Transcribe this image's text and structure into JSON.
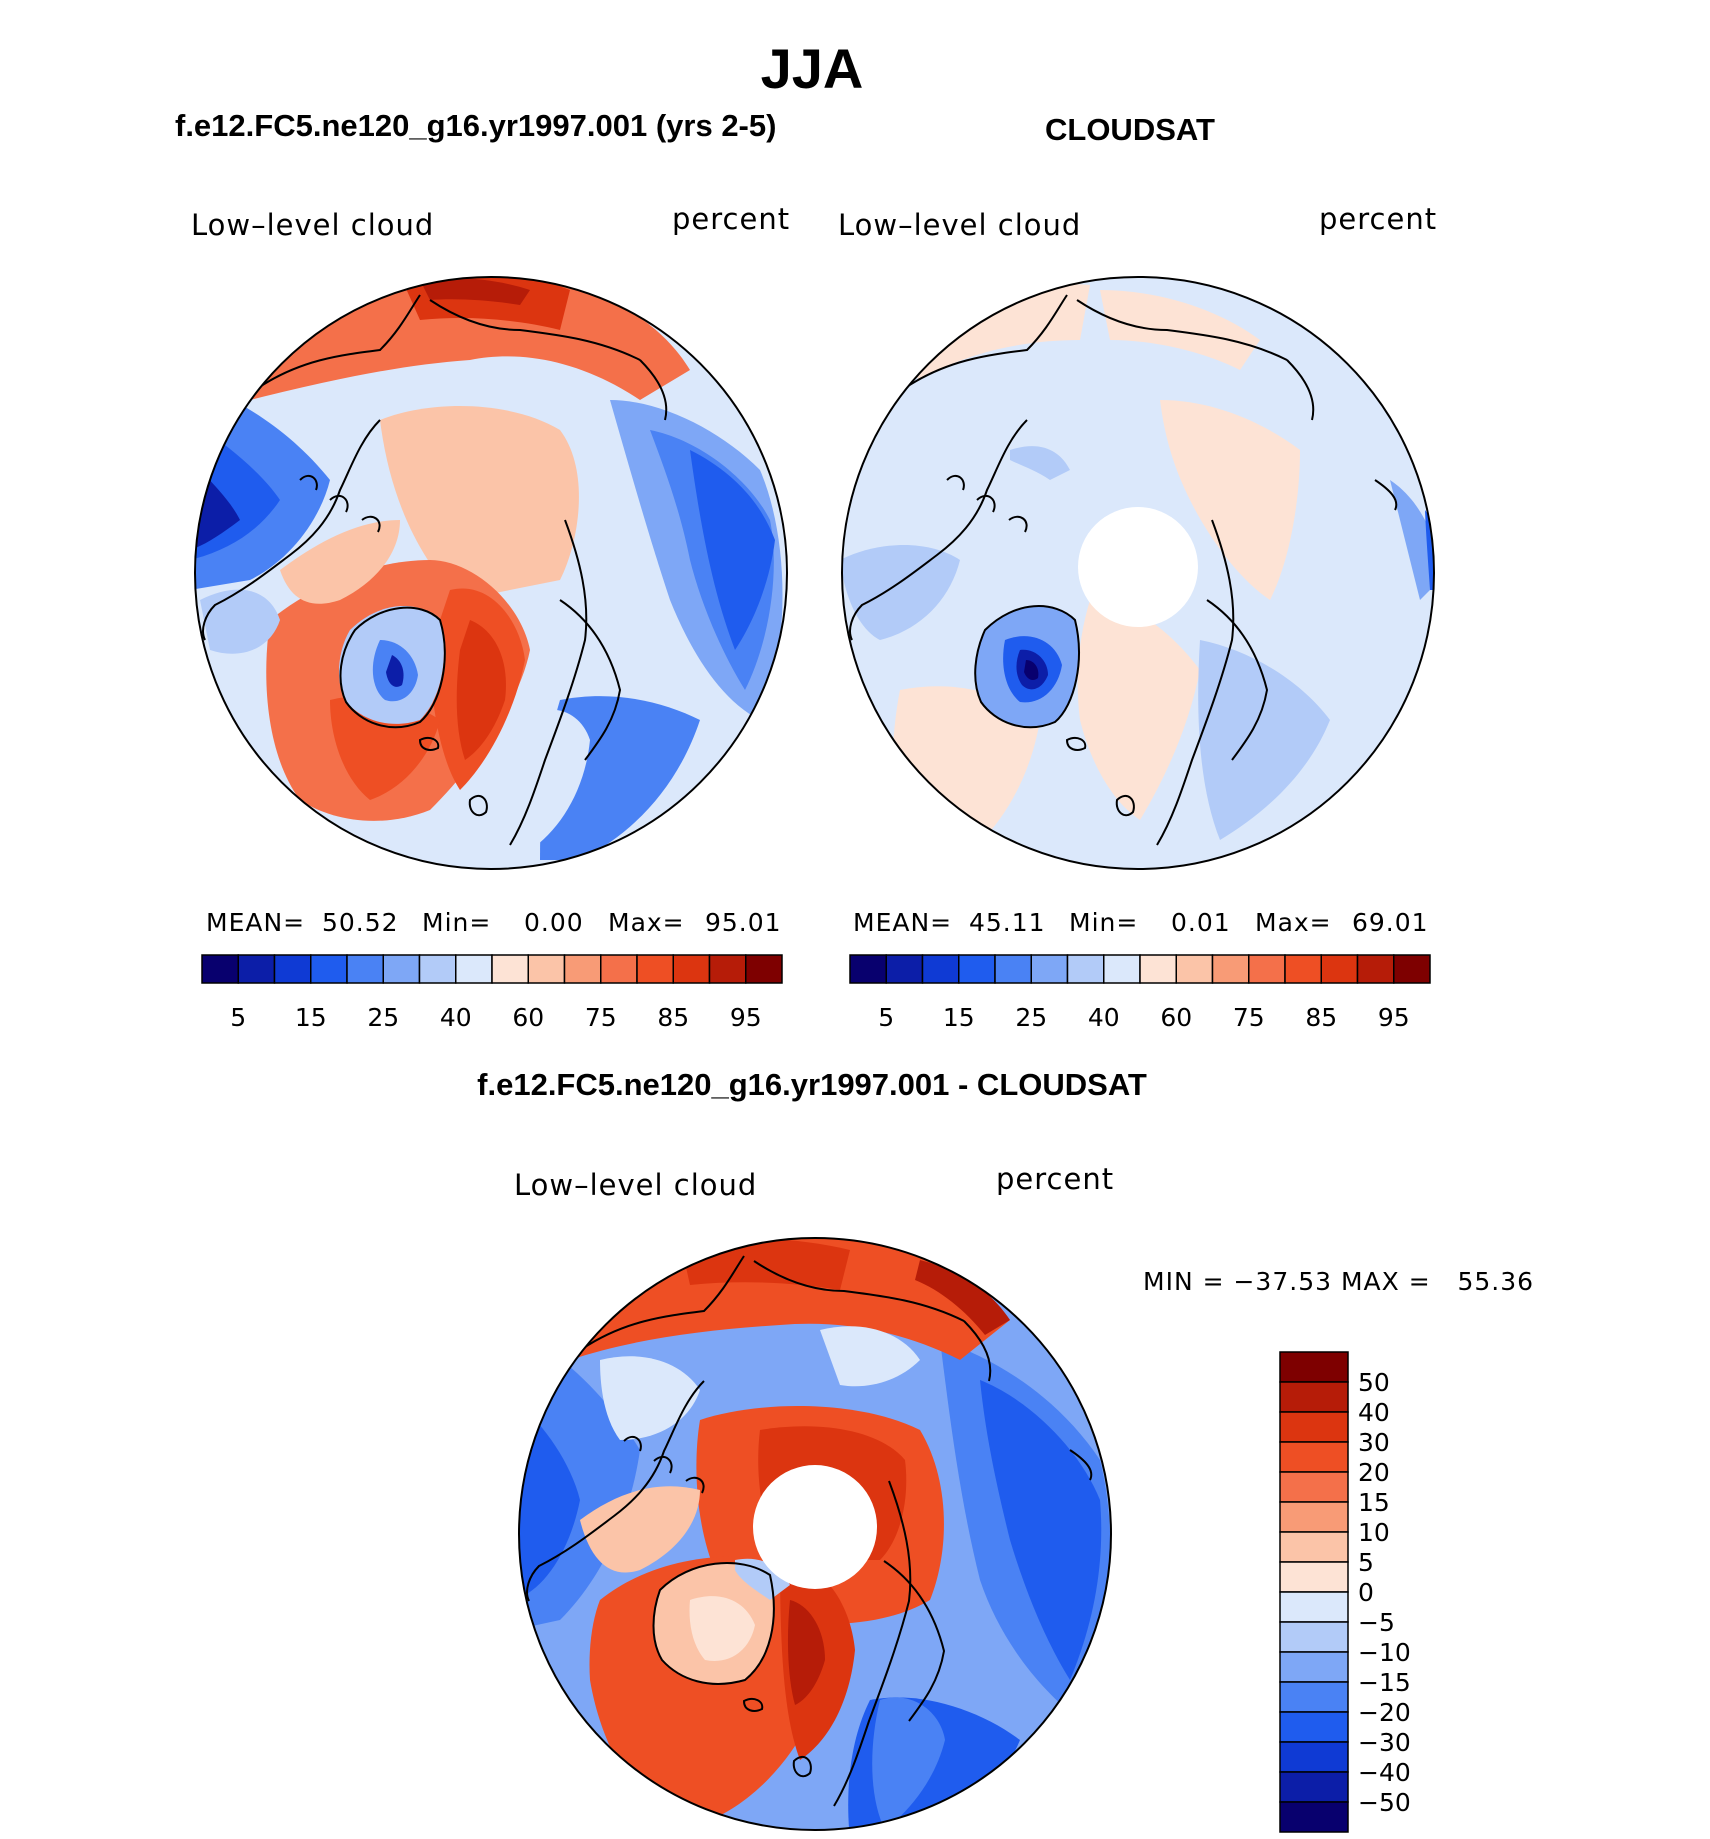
{
  "title": "JJA",
  "panels": [
    {
      "title": "f.e12.FC5.ne120_g16.yr1997.001 (yrs 2-5)",
      "variable_label": "Low–level cloud",
      "units_label": "percent",
      "stats": {
        "mean_label": "MEAN=",
        "mean": "50.52",
        "min_label": "Min=",
        "min": "0.00",
        "max_label": "Max=",
        "max": "95.01"
      }
    },
    {
      "title": "CLOUDSAT",
      "variable_label": "Low–level cloud",
      "units_label": "percent",
      "stats": {
        "mean_label": "MEAN=",
        "mean": "45.11",
        "min_label": "Min=",
        "min": "0.01",
        "max_label": "Max=",
        "max": "69.01"
      }
    },
    {
      "title": "f.e12.FC5.ne120_g16.yr1997.001 - CLOUDSAT",
      "variable_label": "Low–level cloud",
      "units_label": "percent",
      "stats_text": "MIN = −37.53 MAX =   55.36"
    }
  ],
  "colorbar_abs": {
    "colors": [
      "#08006e",
      "#0c1ea8",
      "#0f3ad4",
      "#1f5cee",
      "#4a82f4",
      "#7ea7f6",
      "#b2cbf8",
      "#dbe8fb",
      "#fde3d5",
      "#fbc4a8",
      "#f89b76",
      "#f4704a",
      "#ee4f24",
      "#dc3510",
      "#b61c08",
      "#7e0000"
    ],
    "tick_labels": [
      "5",
      "15",
      "25",
      "40",
      "60",
      "75",
      "85",
      "95"
    ]
  },
  "colorbar_diff": {
    "colors": [
      "#7e0000",
      "#b61c08",
      "#dc3510",
      "#ee4f24",
      "#f4704a",
      "#f89b76",
      "#fbc4a8",
      "#fde3d5",
      "#dbe8fb",
      "#b2cbf8",
      "#7ea7f6",
      "#4a82f4",
      "#1f5cee",
      "#0f3ad4",
      "#0c1ea8",
      "#08006e"
    ],
    "tick_labels": [
      "50",
      "40",
      "30",
      "20",
      "15",
      "10",
      "5",
      "0",
      "−5",
      "−10",
      "−15",
      "−20",
      "−30",
      "−40",
      "−50"
    ]
  }
}
